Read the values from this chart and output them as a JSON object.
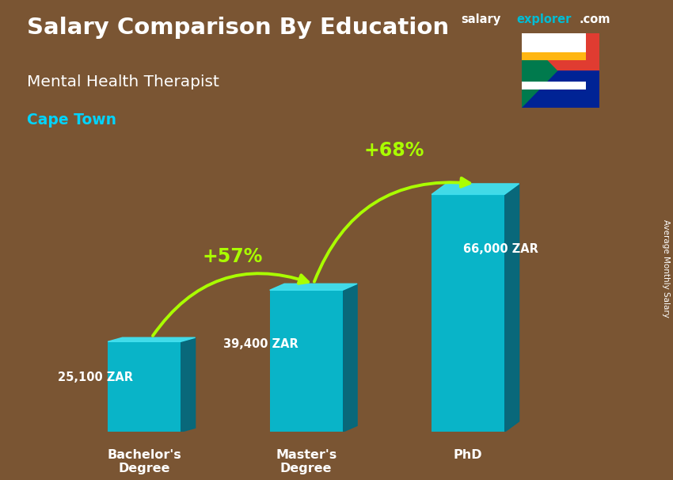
{
  "title_line1": "Salary Comparison By Education",
  "subtitle": "Mental Health Therapist",
  "location": "Cape Town",
  "categories": [
    "Bachelor's\nDegree",
    "Master's\nDegree",
    "PhD"
  ],
  "values": [
    25100,
    39400,
    66000
  ],
  "value_labels": [
    "25,100 ZAR",
    "39,400 ZAR",
    "66,000 ZAR"
  ],
  "pct_labels": [
    "+57%",
    "+68%"
  ],
  "bar_face_color": "#00bcd4",
  "bar_side_color": "#006a80",
  "bar_top_color": "#40e0f0",
  "bg_color": "#7a5533",
  "title_color": "#ffffff",
  "subtitle_color": "#ffffff",
  "location_color": "#00d4ff",
  "value_color": "#ffffff",
  "pct_color": "#aaff00",
  "arrow_color": "#aaff00",
  "ylabel_text": "Average Monthly Salary",
  "bar_width": 0.45,
  "ylim_max": 80000,
  "x_positions": [
    1,
    2,
    3
  ],
  "flag_red": "#E03C31",
  "flag_blue": "#002395",
  "flag_green": "#007A4D",
  "flag_gold": "#FFB612",
  "brand_salary_color": "#ffffff",
  "brand_explorer_color": "#00bcd4",
  "brand_com_color": "#ffffff"
}
